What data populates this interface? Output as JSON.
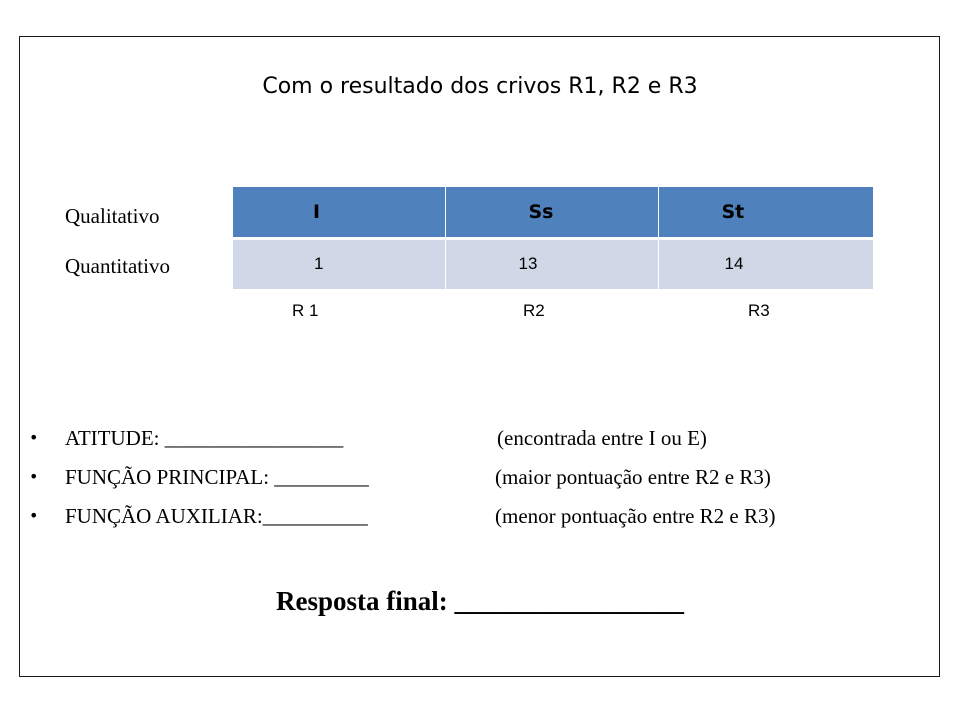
{
  "title": "Com o resultado dos crivos R1, R2 e R3",
  "row_labels": {
    "qualitative": "Qualitativo",
    "quantitative": "Quantitativo"
  },
  "table": {
    "headers": [
      "I",
      "Ss",
      "St"
    ],
    "values": [
      "1",
      "13",
      "14"
    ],
    "header_color": "#4f81bd",
    "row_color": "#d0d8e8"
  },
  "crivos": [
    "R 1",
    "R2",
    "R3"
  ],
  "bullets": [
    {
      "label": "ATITUDE: _________________",
      "note": "(encontrada entre I ou E)"
    },
    {
      "label": "FUNÇÃO PRINCIPAL: _________",
      "note": "(maior pontuação entre R2 e R3)"
    },
    {
      "label": "FUNÇÃO AUXILIAR:__________",
      "note": "(menor pontuação entre R2 e R3)"
    }
  ],
  "final_answer": "Resposta final: _________________"
}
